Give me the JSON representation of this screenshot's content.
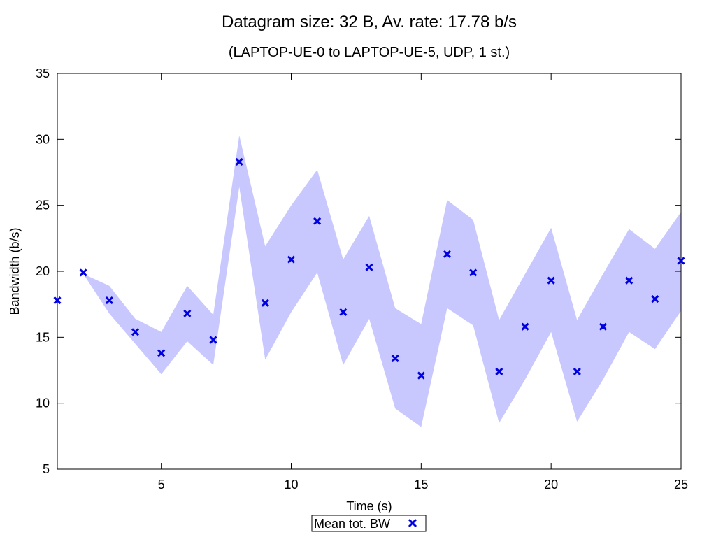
{
  "chart_data": {
    "type": "scatter",
    "title": "Datagram size: 32 B, Av. rate: 17.78 b/s",
    "subtitle": "(LAPTOP-UE-0 to LAPTOP-UE-5, UDP, 1 st.)",
    "xlabel": "Time (s)",
    "ylabel": "Bandwidth (b/s)",
    "xlim": [
      1,
      25
    ],
    "ylim": [
      5,
      35
    ],
    "xticks": [
      5,
      10,
      15,
      20,
      25
    ],
    "yticks": [
      5,
      10,
      15,
      20,
      25,
      30,
      35
    ],
    "grid": false,
    "legend_position": "bottom-center",
    "series": [
      {
        "name": "Mean tot. BW",
        "marker": "x",
        "color": "#0000e0",
        "x": [
          1,
          2,
          3,
          4,
          5,
          6,
          7,
          8,
          9,
          10,
          11,
          12,
          13,
          14,
          15,
          16,
          17,
          18,
          19,
          20,
          21,
          22,
          23,
          24,
          25
        ],
        "y": [
          17.8,
          19.9,
          17.8,
          15.4,
          13.8,
          16.8,
          14.8,
          28.3,
          17.6,
          20.9,
          23.8,
          16.9,
          20.3,
          13.4,
          12.1,
          21.3,
          19.9,
          12.4,
          15.8,
          19.3,
          12.4,
          15.8,
          19.3,
          17.9,
          20.8
        ]
      }
    ],
    "band": {
      "color": "#c8c8ff",
      "x": [
        2,
        3,
        4,
        5,
        6,
        7,
        8,
        9,
        10,
        11,
        12,
        13,
        14,
        15,
        16,
        17,
        18,
        19,
        20,
        21,
        22,
        23,
        24,
        25
      ],
      "lower": [
        19.8,
        16.8,
        14.5,
        12.2,
        14.7,
        12.9,
        26.4,
        13.3,
        16.9,
        19.9,
        12.9,
        16.4,
        9.6,
        8.2,
        17.2,
        15.9,
        8.5,
        11.8,
        15.4,
        8.6,
        11.8,
        15.4,
        14.1,
        17.0
      ],
      "upper": [
        19.8,
        18.9,
        16.4,
        15.4,
        18.9,
        16.7,
        30.3,
        21.9,
        25.0,
        27.7,
        20.9,
        24.2,
        17.2,
        16.0,
        25.4,
        23.9,
        16.3,
        19.8,
        23.3,
        16.3,
        19.8,
        23.2,
        21.7,
        24.5
      ]
    }
  }
}
